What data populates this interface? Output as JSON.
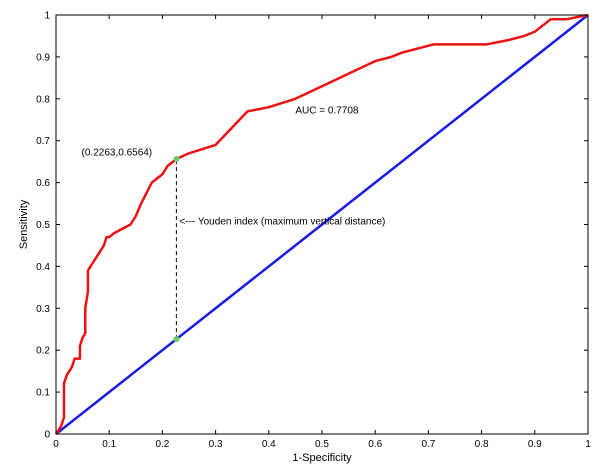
{
  "chart_data": {
    "type": "line",
    "xlabel": "1-Specificity",
    "ylabel": "Sensitivity",
    "xlim": [
      0,
      1
    ],
    "ylim": [
      0,
      1
    ],
    "x_ticks": [
      "0",
      "0.1",
      "0.2",
      "0.3",
      "0.4",
      "0.5",
      "0.6",
      "0.7",
      "0.8",
      "0.9",
      "1"
    ],
    "y_ticks": [
      "0",
      "0.1",
      "0.2",
      "0.3",
      "0.4",
      "0.5",
      "0.6",
      "0.7",
      "0.8",
      "0.9",
      "1"
    ],
    "grid": false,
    "series": [
      {
        "color": "#ee1111",
        "points": [
          [
            0,
            0
          ],
          [
            0.01,
            0.02
          ],
          [
            0.015,
            0.04
          ],
          [
            0.015,
            0.12
          ],
          [
            0.02,
            0.14
          ],
          [
            0.03,
            0.16
          ],
          [
            0.035,
            0.18
          ],
          [
            0.045,
            0.18
          ],
          [
            0.045,
            0.21
          ],
          [
            0.05,
            0.23
          ],
          [
            0.055,
            0.24
          ],
          [
            0.055,
            0.3
          ],
          [
            0.06,
            0.34
          ],
          [
            0.06,
            0.39
          ],
          [
            0.07,
            0.41
          ],
          [
            0.08,
            0.43
          ],
          [
            0.09,
            0.45
          ],
          [
            0.095,
            0.47
          ],
          [
            0.1,
            0.47
          ],
          [
            0.11,
            0.48
          ],
          [
            0.14,
            0.5
          ],
          [
            0.15,
            0.52
          ],
          [
            0.16,
            0.55
          ],
          [
            0.18,
            0.6
          ],
          [
            0.19,
            0.61
          ],
          [
            0.2,
            0.62
          ],
          [
            0.21,
            0.64
          ],
          [
            0.2263,
            0.6564
          ],
          [
            0.25,
            0.67
          ],
          [
            0.3,
            0.69
          ],
          [
            0.33,
            0.73
          ],
          [
            0.36,
            0.77
          ],
          [
            0.4,
            0.78
          ],
          [
            0.45,
            0.8
          ],
          [
            0.5,
            0.83
          ],
          [
            0.55,
            0.86
          ],
          [
            0.6,
            0.89
          ],
          [
            0.63,
            0.9
          ],
          [
            0.65,
            0.91
          ],
          [
            0.71,
            0.93
          ],
          [
            0.81,
            0.93
          ],
          [
            0.85,
            0.94
          ],
          [
            0.88,
            0.95
          ],
          [
            0.9,
            0.96
          ],
          [
            0.91,
            0.97
          ],
          [
            0.93,
            0.99
          ],
          [
            0.96,
            0.99
          ],
          [
            1,
            1
          ]
        ]
      },
      {
        "color": "#1a1ae6",
        "points": [
          [
            0,
            0
          ],
          [
            1,
            1
          ]
        ]
      }
    ],
    "markers": [
      {
        "x": 0.2263,
        "y": 0.6564,
        "color": "#66cc66"
      },
      {
        "x": 0.2263,
        "y": 0.2263,
        "color": "#66cc66"
      }
    ],
    "vertical_segment": {
      "x": 0.2263,
      "y1": 0.2263,
      "y2": 0.6564,
      "style": "dashed"
    },
    "annotations": [
      {
        "text": "(0.2263,0.6564)",
        "x": 0.048,
        "y": 0.665
      },
      {
        "text": "AUC = 0.7708",
        "x": 0.45,
        "y": 0.765
      },
      {
        "text": "<--- Youden index (maximum vertical distance)",
        "x": 0.232,
        "y": 0.5
      }
    ]
  }
}
